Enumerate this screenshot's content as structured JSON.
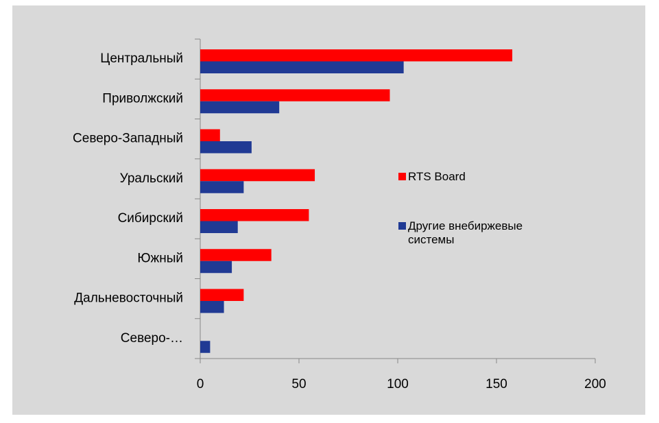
{
  "chart_data": {
    "type": "hbar",
    "categories": [
      "Центральный",
      "Приволжский",
      "Северо-Западный",
      "Уральский",
      "Сибирский",
      "Южный",
      "Дальневосточный",
      "Северо-…"
    ],
    "series": [
      {
        "name": "RTS Board",
        "color": "#ff0000",
        "values": [
          158,
          96,
          10,
          58,
          55,
          36,
          22,
          0
        ]
      },
      {
        "name": "Другие внебиржевые системы",
        "color": "#203a94",
        "values": [
          103,
          40,
          26,
          22,
          19,
          16,
          12,
          5
        ]
      }
    ],
    "xlim": [
      0,
      200
    ],
    "xticks": [
      0,
      50,
      100,
      150,
      200
    ],
    "grid": false,
    "legend": "right"
  }
}
